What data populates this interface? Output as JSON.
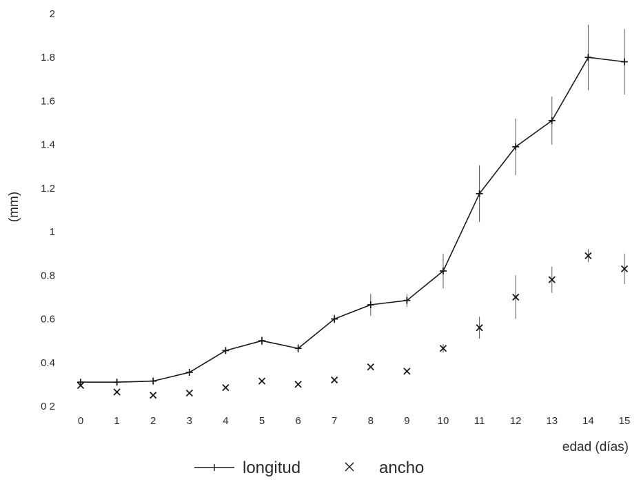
{
  "chart_data": {
    "type": "line",
    "title": "",
    "xlabel": "edad (días)",
    "ylabel": "(mm)",
    "x": [
      0,
      1,
      2,
      3,
      4,
      5,
      6,
      7,
      8,
      9,
      10,
      11,
      12,
      13,
      14,
      15
    ],
    "xticks": [
      "0",
      "1",
      "2",
      "3",
      "4",
      "5",
      "6",
      "7",
      "8",
      "9",
      "10",
      "11",
      "12",
      "13",
      "14",
      "15"
    ],
    "yticks": [
      "0 2",
      "0.4",
      "0.6",
      "0.8",
      "1",
      "1.2",
      "1.4",
      "1.6",
      "1.8",
      "2"
    ],
    "ylim": [
      0.2,
      2
    ],
    "grid": false,
    "legend_position": "bottom-center",
    "series": [
      {
        "name": "longitud",
        "style": "line-with-plus-markers",
        "color": "#1a1a1a",
        "values": [
          0.31,
          0.31,
          0.315,
          0.355,
          0.455,
          0.5,
          0.465,
          0.6,
          0.665,
          0.685,
          0.82,
          1.175,
          1.39,
          1.51,
          1.8,
          1.78
        ],
        "error": [
          0,
          0,
          0,
          0,
          0,
          0.02,
          0.02,
          0.02,
          0.05,
          0.03,
          0.08,
          0.13,
          0.13,
          0.11,
          0.15,
          0.15
        ]
      },
      {
        "name": "ancho",
        "style": "x-markers",
        "color": "#1a1a1a",
        "values": [
          0.295,
          0.265,
          0.25,
          0.26,
          0.285,
          0.315,
          0.3,
          0.32,
          0.38,
          0.36,
          0.465,
          0.56,
          0.7,
          0.78,
          0.89,
          0.83
        ],
        "error": [
          0,
          0,
          0,
          0,
          0,
          0,
          0,
          0,
          0,
          0,
          0.02,
          0.05,
          0.1,
          0.06,
          0.03,
          0.07
        ]
      }
    ]
  }
}
